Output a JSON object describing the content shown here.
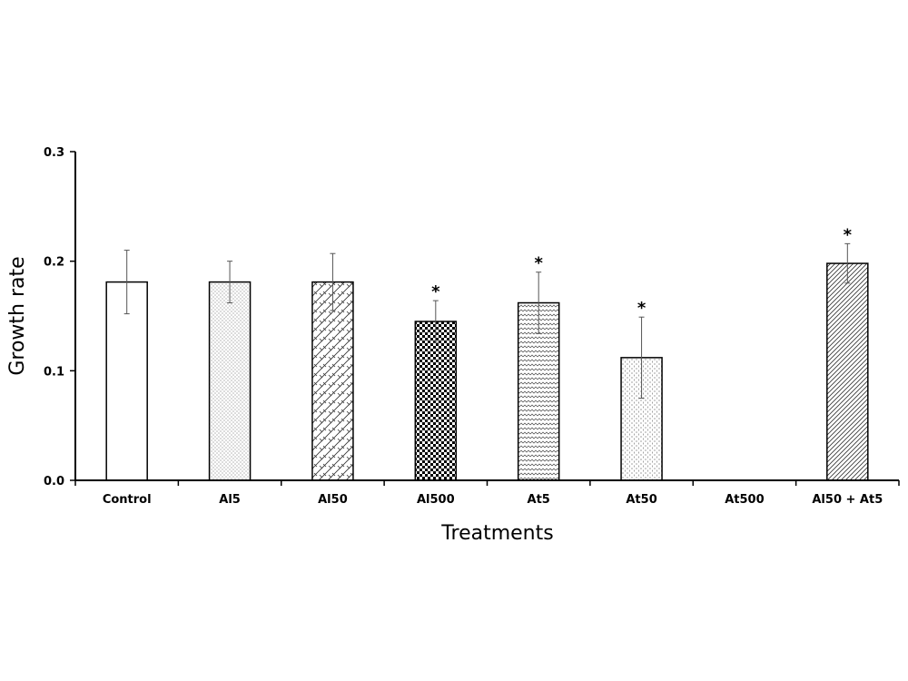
{
  "chart_data": {
    "type": "bar",
    "title": "",
    "xlabel": "Treatments",
    "ylabel": "Growth rate",
    "ylim": [
      0,
      0.3
    ],
    "yticks": [
      "0.0",
      "0.1",
      "0.2",
      "0.3"
    ],
    "ytick_values": [
      0,
      0.1,
      0.2,
      0.3
    ],
    "grid": false,
    "categories": [
      "Control",
      "Al5",
      "Al50",
      "Al500",
      "At5",
      "At50",
      "At500",
      "Al50 + At5"
    ],
    "values": [
      0.181,
      0.181,
      0.181,
      0.145,
      0.162,
      0.112,
      0,
      0.198
    ],
    "errors": [
      0.029,
      0.019,
      0.026,
      0.019,
      0.028,
      0.037,
      0,
      0.018
    ],
    "significance": [
      "",
      "",
      "",
      "*",
      "*",
      "*",
      "",
      "*"
    ],
    "patterns": [
      "none",
      "dots",
      "diag-cross",
      "checker",
      "wave",
      "fine-dots",
      "none",
      "diag-lines"
    ],
    "bar_color": "#ffffff",
    "edge_color": "#000000"
  }
}
